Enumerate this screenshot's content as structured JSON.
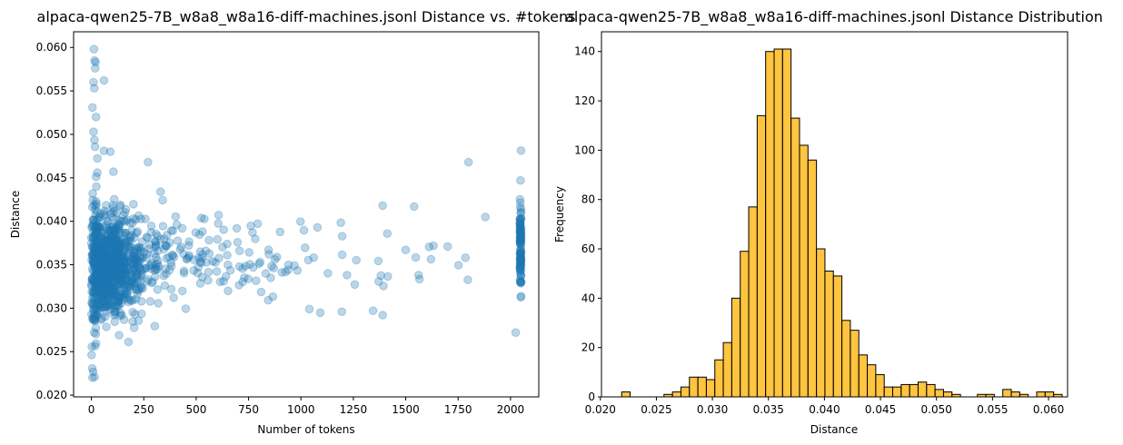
{
  "chart_data": [
    {
      "type": "scatter",
      "title": "alpaca-qwen25-7B_w8a8_w8a16-diff-machines.jsonl Distance vs. #tokens",
      "xlabel": "Number of tokens",
      "ylabel": "Distance",
      "xlim": [
        -85,
        2135
      ],
      "ylim": [
        0.0198,
        0.0618
      ],
      "xticks": [
        0,
        250,
        500,
        750,
        1000,
        1250,
        1500,
        1750,
        2000
      ],
      "xtick_labels": [
        "0",
        "250",
        "500",
        "750",
        "1000",
        "1250",
        "1500",
        "1750",
        "2000"
      ],
      "yticks": [
        0.02,
        0.025,
        0.03,
        0.035,
        0.04,
        0.045,
        0.05,
        0.055,
        0.06
      ],
      "ytick_labels": [
        "0.020",
        "0.025",
        "0.030",
        "0.035",
        "0.040",
        "0.045",
        "0.050",
        "0.055",
        "0.060"
      ],
      "grid": false,
      "color": "#1f77b4",
      "alpha": 0.3,
      "highlighted_points": [
        {
          "x": 12,
          "y": 0.0598
        },
        {
          "x": 15,
          "y": 0.0585
        },
        {
          "x": 20,
          "y": 0.0583
        },
        {
          "x": 18,
          "y": 0.0576
        },
        {
          "x": 10,
          "y": 0.056
        },
        {
          "x": 14,
          "y": 0.0553
        },
        {
          "x": 60,
          "y": 0.0562
        },
        {
          "x": 5,
          "y": 0.0531
        },
        {
          "x": 22,
          "y": 0.052
        },
        {
          "x": 10,
          "y": 0.0503
        },
        {
          "x": 60,
          "y": 0.0481
        },
        {
          "x": 90,
          "y": 0.048
        },
        {
          "x": 270,
          "y": 0.0468
        },
        {
          "x": 1800,
          "y": 0.0468
        },
        {
          "x": 105,
          "y": 0.0457
        },
        {
          "x": 330,
          "y": 0.0434
        },
        {
          "x": 5,
          "y": 0.022
        },
        {
          "x": 15,
          "y": 0.0221
        },
        {
          "x": 2025,
          "y": 0.0272
        },
        {
          "x": 1390,
          "y": 0.0292
        },
        {
          "x": 1040,
          "y": 0.0299
        },
        {
          "x": 2048,
          "y": 0.0447
        },
        {
          "x": 2048,
          "y": 0.033
        },
        {
          "x": 1540,
          "y": 0.0417
        },
        {
          "x": 1390,
          "y": 0.0418
        },
        {
          "x": 1700,
          "y": 0.0371
        },
        {
          "x": 1880,
          "y": 0.0405
        }
      ]
    },
    {
      "type": "bar",
      "subtype": "histogram",
      "title": "alpaca-qwen25-7B_w8a8_w8a16-diff-machines.jsonl Distance Distribution",
      "xlabel": "Distance",
      "ylabel": "Frequency",
      "xlim": [
        0.0201,
        0.0617
      ],
      "ylim": [
        0,
        148
      ],
      "xticks": [
        0.02,
        0.025,
        0.03,
        0.035,
        0.04,
        0.045,
        0.05,
        0.055,
        0.06
      ],
      "xtick_labels": [
        "0.020",
        "0.025",
        "0.030",
        "0.035",
        "0.040",
        "0.045",
        "0.050",
        "0.055",
        "0.060"
      ],
      "yticks": [
        0,
        20,
        40,
        60,
        80,
        100,
        120,
        140
      ],
      "ytick_labels": [
        "0",
        "20",
        "40",
        "60",
        "80",
        "100",
        "120",
        "140"
      ],
      "bin_start": 0.0219,
      "bin_width": 0.000756,
      "values": [
        2,
        0,
        0,
        0,
        0,
        1,
        2,
        4,
        8,
        8,
        7,
        15,
        22,
        40,
        59,
        77,
        114,
        140,
        141,
        141,
        113,
        102,
        96,
        60,
        51,
        49,
        31,
        27,
        17,
        13,
        9,
        4,
        4,
        5,
        5,
        6,
        5,
        3,
        2,
        1,
        0,
        0,
        1,
        1,
        0,
        3,
        2,
        1,
        0,
        2,
        2,
        1
      ],
      "color": "#ffb000",
      "edgecolor": "#000000",
      "alpha": 0.75,
      "grid": false
    }
  ]
}
